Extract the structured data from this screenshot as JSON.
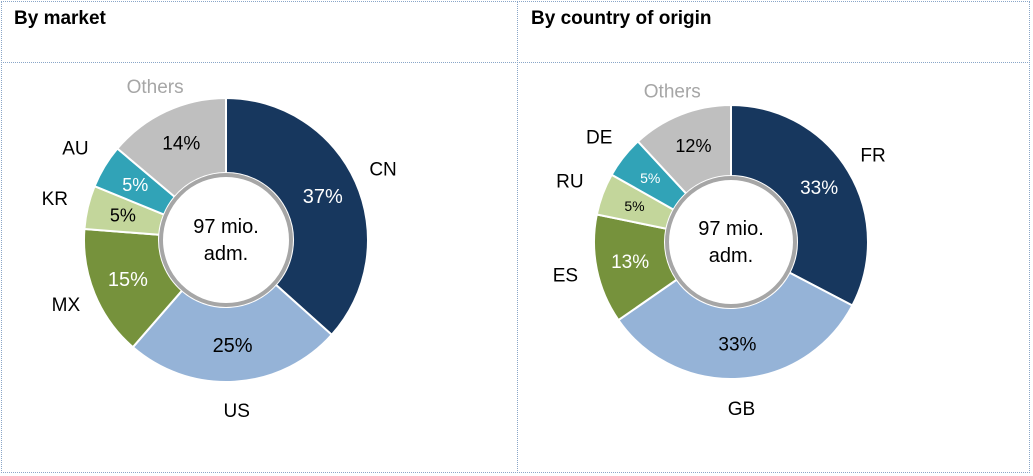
{
  "chart_data": [
    {
      "type": "pie",
      "title": "By market",
      "slices": [
        {
          "category": "CN",
          "value": 37,
          "label": "37%",
          "color": "#17375e",
          "label_color": "#ffffff"
        },
        {
          "category": "US",
          "value": 25,
          "label": "25%",
          "color": "#95b3d7",
          "label_color": "#000000"
        },
        {
          "category": "MX",
          "value": 15,
          "label": "15%",
          "color": "#76923c",
          "label_color": "#ffffff"
        },
        {
          "category": "KR",
          "value": 5,
          "label": "5%",
          "color": "#c3d69b",
          "label_color": "#000000"
        },
        {
          "category": "AU",
          "value": 5,
          "label": "5%",
          "color": "#31a3b7",
          "label_color": "#ffffff"
        },
        {
          "category": "Others",
          "value": 14,
          "label": "14%",
          "color": "#bfbfbf",
          "label_color": "#000000"
        }
      ],
      "center_text": [
        "97 mio.",
        "adm."
      ]
    },
    {
      "type": "pie",
      "title": "By country of origin",
      "slices": [
        {
          "category": "FR",
          "value": 33,
          "label": "33%",
          "color": "#17375e",
          "label_color": "#ffffff"
        },
        {
          "category": "GB",
          "value": 33,
          "label": "33%",
          "color": "#95b3d7",
          "label_color": "#000000"
        },
        {
          "category": "ES",
          "value": 13,
          "label": "13%",
          "color": "#76923c",
          "label_color": "#ffffff"
        },
        {
          "category": "RU",
          "value": 5,
          "label": "5%",
          "color": "#c3d69b",
          "label_color": "#000000"
        },
        {
          "category": "DE",
          "value": 5,
          "label": "5%",
          "color": "#31a3b7",
          "label_color": "#ffffff"
        },
        {
          "category": "Others",
          "value": 12,
          "label": "12%",
          "color": "#bfbfbf",
          "label_color": "#000000"
        }
      ],
      "center_text": [
        "97 mio.",
        "adm."
      ]
    }
  ],
  "colors": {
    "others_label": "#a6a6a6",
    "category_label": "#000000",
    "center_ring": "#a6a6a6",
    "border": "#8aa6c8"
  }
}
